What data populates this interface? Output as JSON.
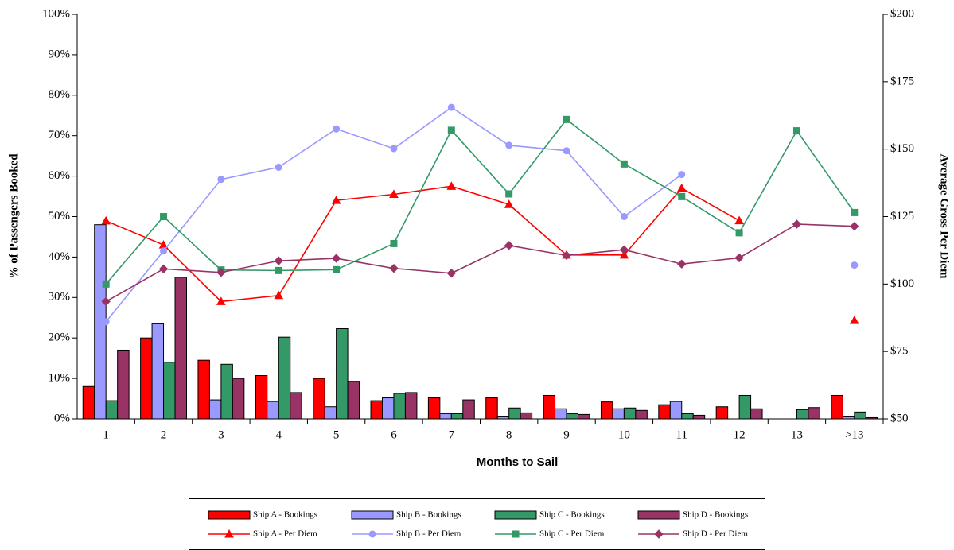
{
  "chart_data": {
    "type": "combo",
    "x_label": "Months to Sail",
    "y_label": "% of Passengers Booked",
    "y2_label": "Average Gross Per Diem",
    "categories": [
      "1",
      "2",
      "3",
      "4",
      "5",
      "6",
      "7",
      "8",
      "9",
      "10",
      "11",
      "12",
      "13",
      ">13"
    ],
    "ylim": [
      0,
      100
    ],
    "yticks": [
      {
        "value": 0,
        "label": "0%"
      },
      {
        "value": 10,
        "label": "10%"
      },
      {
        "value": 20,
        "label": "20%"
      },
      {
        "value": 30,
        "label": "30%"
      },
      {
        "value": 40,
        "label": "40%"
      },
      {
        "value": 50,
        "label": "50%"
      },
      {
        "value": 60,
        "label": "60%"
      },
      {
        "value": 70,
        "label": "70%"
      },
      {
        "value": 80,
        "label": "80%"
      },
      {
        "value": 90,
        "label": "90%"
      },
      {
        "value": 100,
        "label": "100%"
      }
    ],
    "y2lim": [
      50,
      200
    ],
    "y2ticks": [
      {
        "value": 50,
        "label": "$50"
      },
      {
        "value": 75,
        "label": "$75"
      },
      {
        "value": 100,
        "label": "$100"
      },
      {
        "value": 125,
        "label": "$125"
      },
      {
        "value": 150,
        "label": "$150"
      },
      {
        "value": 175,
        "label": "$175"
      },
      {
        "value": 200,
        "label": "$200"
      }
    ],
    "series": [
      {
        "name": "Ship A - Bookings",
        "type": "bar",
        "color": "#ff0000",
        "values": [
          8,
          20,
          14.5,
          10.7,
          10,
          4.5,
          5.2,
          5.2,
          5.8,
          4.2,
          3.5,
          3,
          0,
          5.8
        ]
      },
      {
        "name": "Ship B - Bookings",
        "type": "bar",
        "color": "#9999ff",
        "values": [
          48,
          23.5,
          4.7,
          4.3,
          3,
          5.2,
          1.3,
          0.5,
          2.5,
          2.5,
          4.3,
          0,
          0,
          0.5
        ]
      },
      {
        "name": "Ship C - Bookings",
        "type": "bar",
        "color": "#339966",
        "values": [
          4.5,
          14,
          13.5,
          20.2,
          22.3,
          6.3,
          1.3,
          2.7,
          1.3,
          2.7,
          1.3,
          5.8,
          2.3,
          1.7
        ]
      },
      {
        "name": "Ship D - Bookings",
        "type": "bar",
        "color": "#993366",
        "values": [
          17,
          35,
          10,
          6.5,
          9.3,
          6.5,
          4.7,
          1.5,
          1.1,
          2.1,
          0.9,
          2.5,
          2.8,
          0.3
        ]
      },
      {
        "name": "Ship A - Per Diem",
        "type": "line",
        "axis": "y2",
        "color": "#ff0000",
        "marker": "triangle",
        "values": [
          123.4,
          114.5,
          93.5,
          95.75,
          131,
          133.25,
          136.25,
          129.5,
          110.75,
          110.75,
          135.5,
          123.5,
          null,
          86.5
        ]
      },
      {
        "name": "Ship B - Per Diem",
        "type": "line",
        "axis": "y2",
        "color": "#9999ff",
        "marker": "circle",
        "values": [
          86,
          112.25,
          138.8,
          143.3,
          157.5,
          150.2,
          165.5,
          151.4,
          149.4,
          125,
          140.6,
          null,
          null,
          107
        ]
      },
      {
        "name": "Ship C - Per Diem",
        "type": "line",
        "axis": "y2",
        "color": "#339966",
        "marker": "square",
        "values": [
          100,
          125,
          105.2,
          105,
          105.3,
          115,
          157,
          133.4,
          161,
          144.5,
          132.4,
          119,
          156.8,
          126.5
        ]
      },
      {
        "name": "Ship D - Per Diem",
        "type": "line",
        "axis": "y2",
        "color": "#993366",
        "marker": "diamond",
        "values": [
          93.5,
          105.6,
          104.3,
          108.6,
          109.5,
          105.8,
          104,
          114.3,
          110.6,
          112.7,
          107.4,
          109.7,
          122.2,
          121.4
        ]
      }
    ]
  }
}
